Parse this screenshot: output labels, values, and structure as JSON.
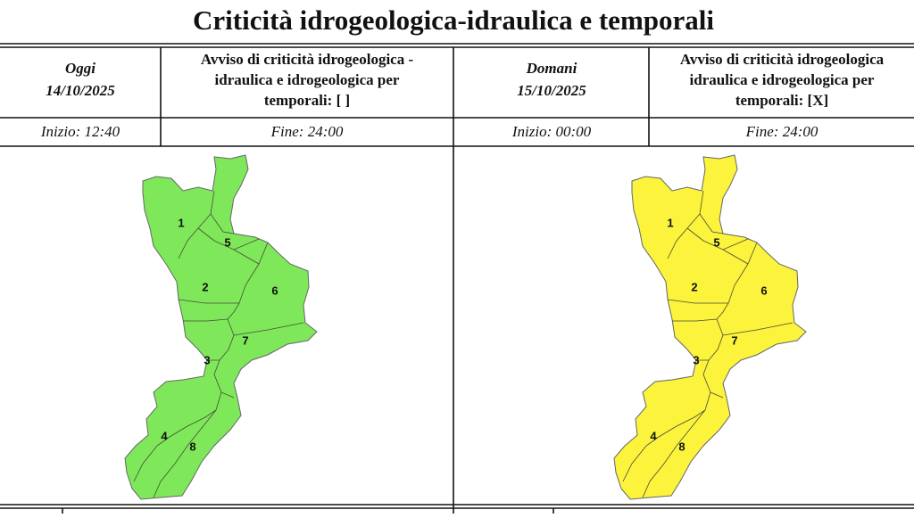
{
  "title": "Criticità idrogeologica-idraulica e temporali",
  "panels": [
    {
      "day": "Oggi",
      "date": "14/10/2025",
      "notice": [
        "Avviso di criticità idrogeologica -",
        "idraulica e idrogeologica per",
        "temporali: [  ]"
      ],
      "start": "Inizio: 12:40",
      "end": "Fine: 24:00",
      "color": "#7ee85a",
      "zones": [
        "1",
        "5",
        "2",
        "6",
        "7",
        "3",
        "4",
        "8"
      ]
    },
    {
      "day": "Domani",
      "date": "15/10/2025",
      "notice": [
        "Avviso di criticità idrogeologica",
        "idraulica e idrogeologica per",
        "temporali: [X]"
      ],
      "start": "Inizio: 00:00",
      "end": "Fine: 24:00",
      "color": "#fbf33c",
      "zones": [
        "1",
        "5",
        "2",
        "6",
        "7",
        "3",
        "4",
        "8"
      ]
    }
  ]
}
